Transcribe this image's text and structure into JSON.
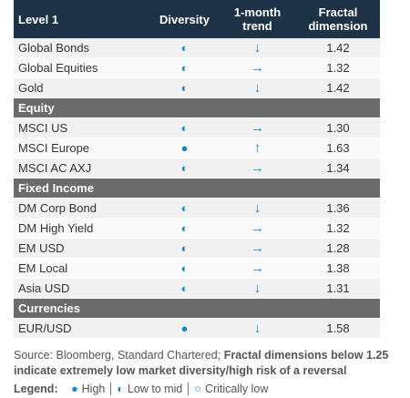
{
  "table": {
    "columns": [
      "Level 1",
      "Diversity",
      "1-month trend",
      "Fractal dimension"
    ],
    "groups": [
      {
        "rows": [
          [
            "Global Bonds",
            "◐",
            "↓",
            "1.42"
          ],
          [
            "Global Equities",
            "◐",
            "→",
            "1.32"
          ],
          [
            "Gold",
            "◐",
            "↓",
            "1.42"
          ]
        ]
      },
      {
        "title": "Equity",
        "rows": [
          [
            "MSCI US",
            "◐",
            "→",
            "1.30"
          ],
          [
            "MSCI Europe",
            "●",
            "↑",
            "1.63"
          ],
          [
            "MSCI AC AXJ",
            "◐",
            "→",
            "1.34"
          ]
        ]
      },
      {
        "title": "Fixed Income",
        "rows": [
          [
            "DM Corp Bond",
            "◐",
            "↓",
            "1.36"
          ],
          [
            "DM High Yield",
            "◐",
            "→",
            "1.32"
          ],
          [
            "EM USD",
            "◐",
            "→",
            "1.28"
          ],
          [
            "EM Local",
            "◐",
            "→",
            "1.38"
          ],
          [
            "Asia USD",
            "◐",
            "↓",
            "1.31"
          ]
        ]
      },
      {
        "title": "Currencies",
        "rows": [
          [
            "EUR/USD",
            "●",
            "↓",
            "1.58"
          ]
        ]
      }
    ]
  },
  "source": {
    "plain": "Source: Bloomberg, Standard Chartered;",
    "bold": "Fractal dimensions below 1.25 indicate extremely low market diversity/high risk of a reversal"
  },
  "legend": {
    "title": "Legend:",
    "items": [
      {
        "symbol": "●",
        "label": "High"
      },
      {
        "symbol": "◐",
        "label": "Low to mid"
      },
      {
        "symbol": "○",
        "label": "Critically low"
      }
    ]
  }
}
